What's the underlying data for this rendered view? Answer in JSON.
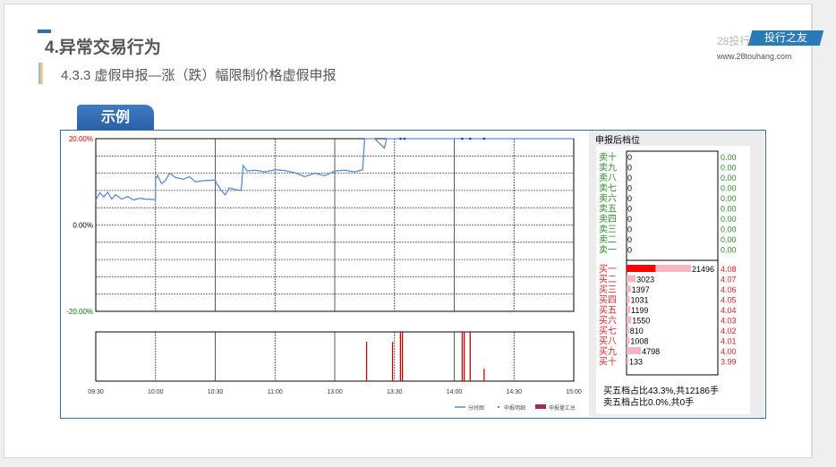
{
  "header": {
    "title": "4.异常交易行为",
    "subtitle": "4.3.3 虚假申报—涨（跌）幅限制价格虚假申报",
    "brand_gray": "28投行",
    "brand_badge": "投行之友",
    "url": "www.28touhang.com"
  },
  "example_tab": "示例",
  "chart_data": {
    "type": "line",
    "y_ticks": [
      "20.00%",
      "0.00%",
      "-20.00%"
    ],
    "ylim": [
      -20,
      20
    ],
    "x_ticks": [
      "09:30",
      "10:00",
      "10:30",
      "11:00",
      "13:00",
      "13:30",
      "14:00",
      "14:30",
      "15:00"
    ],
    "price_series": [
      [
        "09:30",
        5.8
      ],
      [
        "09:32",
        7.5
      ],
      [
        "09:34",
        6.5
      ],
      [
        "09:36",
        7.6
      ],
      [
        "09:38",
        6
      ],
      [
        "09:40",
        7
      ],
      [
        "09:43",
        6
      ],
      [
        "09:46",
        6.6
      ],
      [
        "09:49",
        5.8
      ],
      [
        "09:52",
        6.2
      ],
      [
        "09:55",
        6
      ],
      [
        "10:00",
        5.9
      ],
      [
        "10:00",
        10.5
      ],
      [
        "10:01",
        11.5
      ],
      [
        "10:03",
        9.6
      ],
      [
        "10:05",
        10.3
      ],
      [
        "10:07",
        12
      ],
      [
        "10:10",
        11
      ],
      [
        "10:14",
        10.6
      ],
      [
        "10:17",
        11.2
      ],
      [
        "10:20",
        10
      ],
      [
        "10:25",
        10.3
      ],
      [
        "10:30",
        10.4
      ],
      [
        "10:31",
        9.4
      ],
      [
        "10:33",
        8
      ],
      [
        "10:35",
        7
      ],
      [
        "10:37",
        8.6
      ],
      [
        "10:40",
        8.2
      ],
      [
        "10:43",
        8
      ],
      [
        "10:44",
        13.8
      ],
      [
        "10:46",
        12.5
      ],
      [
        "10:50",
        12.7
      ],
      [
        "10:55",
        12.3
      ],
      [
        "11:00",
        12.8
      ],
      [
        "11:05",
        12.6
      ],
      [
        "11:10",
        12.1
      ],
      [
        "11:15",
        11.2
      ],
      [
        "11:20",
        12
      ],
      [
        "11:25",
        11.4
      ],
      [
        "11:30",
        12.5
      ],
      [
        "13:05",
        12.7
      ],
      [
        "13:10",
        12.3
      ],
      [
        "13:14",
        12.8
      ],
      [
        "13:15",
        20
      ],
      [
        "13:20",
        20
      ],
      [
        "13:25",
        17.8
      ],
      [
        "13:26",
        20
      ],
      [
        "15:00",
        20
      ]
    ],
    "detail_markers": [
      "13:33",
      "13:35",
      "14:04",
      "14:08",
      "14:15"
    ],
    "volume_bars": [
      {
        "time": "13:16",
        "value": 0.8
      },
      {
        "time": "13:29",
        "value": 0.8
      },
      {
        "time": "13:33",
        "value": 1
      },
      {
        "time": "13:34",
        "value": 1
      },
      {
        "time": "14:04",
        "value": 1
      },
      {
        "time": "14:05",
        "value": 1
      },
      {
        "time": "14:08",
        "value": 1
      },
      {
        "time": "14:15",
        "value": 0.25
      }
    ],
    "legend": [
      "分时图",
      "申报明细",
      "申报量汇总"
    ],
    "colors": {
      "line": "#5b8bd6",
      "bar": "#d00000",
      "sum": "#9c2a5e"
    }
  },
  "order_book": {
    "title": "申报后档位",
    "sell": [
      {
        "label": "卖十",
        "vol": "0",
        "price": "0.00"
      },
      {
        "label": "卖九",
        "vol": "0",
        "price": "0.00"
      },
      {
        "label": "卖八",
        "vol": "0",
        "price": "0.00"
      },
      {
        "label": "卖七",
        "vol": "0",
        "price": "0.00"
      },
      {
        "label": "卖六",
        "vol": "0",
        "price": "0.00"
      },
      {
        "label": "卖五",
        "vol": "0",
        "price": "0.00"
      },
      {
        "label": "卖四",
        "vol": "0",
        "price": "0.00"
      },
      {
        "label": "卖三",
        "vol": "0",
        "price": "0.00"
      },
      {
        "label": "卖二",
        "vol": "0",
        "price": "0.00"
      },
      {
        "label": "卖一",
        "vol": "0",
        "price": "0.00"
      }
    ],
    "buy": [
      {
        "label": "买一",
        "vol": "21496",
        "price": "4.08",
        "red": 0.45
      },
      {
        "label": "买二",
        "vol": "3023",
        "price": "4.07"
      },
      {
        "label": "买三",
        "vol": "1397",
        "price": "4.06"
      },
      {
        "label": "买四",
        "vol": "1031",
        "price": "4.05"
      },
      {
        "label": "买五",
        "vol": "1199",
        "price": "4.04"
      },
      {
        "label": "买六",
        "vol": "1550",
        "price": "4.03"
      },
      {
        "label": "买七",
        "vol": "810",
        "price": "4.02"
      },
      {
        "label": "买八",
        "vol": "1008",
        "price": "4.01"
      },
      {
        "label": "买九",
        "vol": "4798",
        "price": "4.00"
      },
      {
        "label": "买十",
        "vol": "133",
        "price": "3.99"
      }
    ],
    "summary_buy": "买五档占比43.3%,共12186手",
    "summary_sell": "卖五档占比0.0%,共0手"
  }
}
